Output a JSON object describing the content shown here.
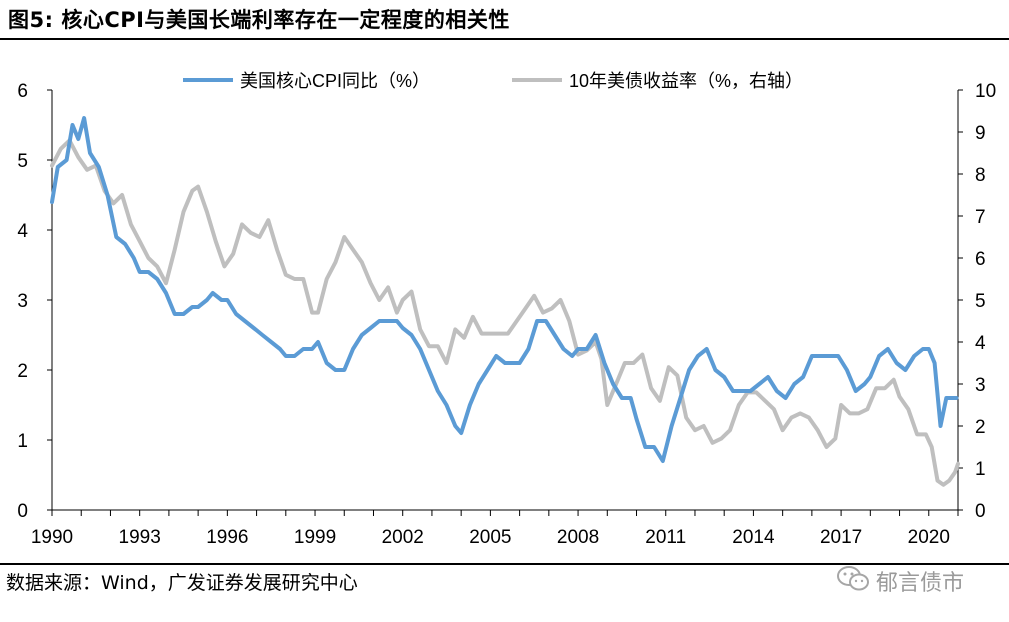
{
  "title": "图5:  核心CPI与美国长端利率存在一定程度的相关性",
  "source": "数据来源：Wind，广发证券发展研究中心",
  "watermark": "郁言债市",
  "chart_data": {
    "type": "line",
    "x_ticks": [
      "1990",
      "1993",
      "1996",
      "1999",
      "2002",
      "2005",
      "2008",
      "2011",
      "2014",
      "2017",
      "2020"
    ],
    "xlim": [
      1990,
      2021
    ],
    "y_left_ticks": [
      "0",
      "1",
      "2",
      "3",
      "4",
      "5",
      "6"
    ],
    "y_right_ticks": [
      "0",
      "1",
      "2",
      "3",
      "4",
      "5",
      "6",
      "7",
      "8",
      "9",
      "10"
    ],
    "ylim_left": [
      0,
      6
    ],
    "ylim_right": [
      0,
      10
    ],
    "legend_position": "top",
    "series": [
      {
        "name": "美国核心CPI同比（%）",
        "axis": "left",
        "color": "#5b9bd5",
        "points": [
          [
            1990.0,
            4.4
          ],
          [
            1990.2,
            4.9
          ],
          [
            1990.5,
            5.0
          ],
          [
            1990.7,
            5.5
          ],
          [
            1990.9,
            5.3
          ],
          [
            1991.1,
            5.6
          ],
          [
            1991.3,
            5.1
          ],
          [
            1991.6,
            4.9
          ],
          [
            1991.9,
            4.5
          ],
          [
            1992.2,
            3.9
          ],
          [
            1992.5,
            3.8
          ],
          [
            1992.8,
            3.6
          ],
          [
            1993.0,
            3.4
          ],
          [
            1993.3,
            3.4
          ],
          [
            1993.6,
            3.3
          ],
          [
            1993.9,
            3.1
          ],
          [
            1994.2,
            2.8
          ],
          [
            1994.5,
            2.8
          ],
          [
            1994.8,
            2.9
          ],
          [
            1995.0,
            2.9
          ],
          [
            1995.3,
            3.0
          ],
          [
            1995.5,
            3.1
          ],
          [
            1995.8,
            3.0
          ],
          [
            1996.0,
            3.0
          ],
          [
            1996.3,
            2.8
          ],
          [
            1996.6,
            2.7
          ],
          [
            1996.9,
            2.6
          ],
          [
            1997.2,
            2.5
          ],
          [
            1997.5,
            2.4
          ],
          [
            1997.8,
            2.3
          ],
          [
            1998.0,
            2.2
          ],
          [
            1998.3,
            2.2
          ],
          [
            1998.6,
            2.3
          ],
          [
            1998.9,
            2.3
          ],
          [
            1999.1,
            2.4
          ],
          [
            1999.4,
            2.1
          ],
          [
            1999.7,
            2.0
          ],
          [
            2000.0,
            2.0
          ],
          [
            2000.3,
            2.3
          ],
          [
            2000.6,
            2.5
          ],
          [
            2000.9,
            2.6
          ],
          [
            2001.2,
            2.7
          ],
          [
            2001.5,
            2.7
          ],
          [
            2001.8,
            2.7
          ],
          [
            2002.0,
            2.6
          ],
          [
            2002.3,
            2.5
          ],
          [
            2002.6,
            2.3
          ],
          [
            2002.9,
            2.0
          ],
          [
            2003.2,
            1.7
          ],
          [
            2003.5,
            1.5
          ],
          [
            2003.8,
            1.2
          ],
          [
            2004.0,
            1.1
          ],
          [
            2004.3,
            1.5
          ],
          [
            2004.6,
            1.8
          ],
          [
            2004.9,
            2.0
          ],
          [
            2005.2,
            2.2
          ],
          [
            2005.5,
            2.1
          ],
          [
            2005.8,
            2.1
          ],
          [
            2006.0,
            2.1
          ],
          [
            2006.3,
            2.3
          ],
          [
            2006.6,
            2.7
          ],
          [
            2006.9,
            2.7
          ],
          [
            2007.2,
            2.5
          ],
          [
            2007.5,
            2.3
          ],
          [
            2007.8,
            2.2
          ],
          [
            2008.0,
            2.3
          ],
          [
            2008.3,
            2.3
          ],
          [
            2008.6,
            2.5
          ],
          [
            2008.9,
            2.1
          ],
          [
            2009.2,
            1.8
          ],
          [
            2009.5,
            1.6
          ],
          [
            2009.8,
            1.6
          ],
          [
            2010.0,
            1.3
          ],
          [
            2010.3,
            0.9
          ],
          [
            2010.6,
            0.9
          ],
          [
            2010.9,
            0.7
          ],
          [
            2011.2,
            1.2
          ],
          [
            2011.5,
            1.6
          ],
          [
            2011.8,
            2.0
          ],
          [
            2012.1,
            2.2
          ],
          [
            2012.4,
            2.3
          ],
          [
            2012.7,
            2.0
          ],
          [
            2013.0,
            1.9
          ],
          [
            2013.3,
            1.7
          ],
          [
            2013.6,
            1.7
          ],
          [
            2013.9,
            1.7
          ],
          [
            2014.2,
            1.8
          ],
          [
            2014.5,
            1.9
          ],
          [
            2014.8,
            1.7
          ],
          [
            2015.1,
            1.6
          ],
          [
            2015.4,
            1.8
          ],
          [
            2015.7,
            1.9
          ],
          [
            2016.0,
            2.2
          ],
          [
            2016.3,
            2.2
          ],
          [
            2016.6,
            2.2
          ],
          [
            2016.9,
            2.2
          ],
          [
            2017.2,
            2.0
          ],
          [
            2017.5,
            1.7
          ],
          [
            2017.8,
            1.8
          ],
          [
            2018.0,
            1.9
          ],
          [
            2018.3,
            2.2
          ],
          [
            2018.6,
            2.3
          ],
          [
            2018.9,
            2.1
          ],
          [
            2019.2,
            2.0
          ],
          [
            2019.5,
            2.2
          ],
          [
            2019.8,
            2.3
          ],
          [
            2020.0,
            2.3
          ],
          [
            2020.2,
            2.1
          ],
          [
            2020.4,
            1.2
          ],
          [
            2020.6,
            1.6
          ],
          [
            2020.8,
            1.6
          ],
          [
            2020.95,
            1.6
          ]
        ]
      },
      {
        "name": "10年美债收益率（%，右轴）",
        "axis": "right",
        "color": "#bfbfbf",
        "points": [
          [
            1990.0,
            8.2
          ],
          [
            1990.3,
            8.6
          ],
          [
            1990.6,
            8.8
          ],
          [
            1990.9,
            8.4
          ],
          [
            1991.2,
            8.1
          ],
          [
            1991.5,
            8.2
          ],
          [
            1991.8,
            7.6
          ],
          [
            1992.1,
            7.3
          ],
          [
            1992.4,
            7.5
          ],
          [
            1992.7,
            6.8
          ],
          [
            1993.0,
            6.4
          ],
          [
            1993.3,
            6.0
          ],
          [
            1993.6,
            5.8
          ],
          [
            1993.9,
            5.4
          ],
          [
            1994.2,
            6.2
          ],
          [
            1994.5,
            7.1
          ],
          [
            1994.8,
            7.6
          ],
          [
            1995.0,
            7.7
          ],
          [
            1995.3,
            7.1
          ],
          [
            1995.6,
            6.4
          ],
          [
            1995.9,
            5.8
          ],
          [
            1996.2,
            6.1
          ],
          [
            1996.5,
            6.8
          ],
          [
            1996.8,
            6.6
          ],
          [
            1997.1,
            6.5
          ],
          [
            1997.4,
            6.9
          ],
          [
            1997.7,
            6.2
          ],
          [
            1998.0,
            5.6
          ],
          [
            1998.3,
            5.5
          ],
          [
            1998.6,
            5.5
          ],
          [
            1998.9,
            4.7
          ],
          [
            1999.1,
            4.7
          ],
          [
            1999.4,
            5.5
          ],
          [
            1999.7,
            5.9
          ],
          [
            2000.0,
            6.5
          ],
          [
            2000.3,
            6.2
          ],
          [
            2000.6,
            5.9
          ],
          [
            2000.9,
            5.4
          ],
          [
            2001.2,
            5.0
          ],
          [
            2001.5,
            5.3
          ],
          [
            2001.8,
            4.7
          ],
          [
            2002.0,
            5.0
          ],
          [
            2002.3,
            5.2
          ],
          [
            2002.6,
            4.3
          ],
          [
            2002.9,
            3.9
          ],
          [
            2003.2,
            3.9
          ],
          [
            2003.5,
            3.5
          ],
          [
            2003.8,
            4.3
          ],
          [
            2004.1,
            4.1
          ],
          [
            2004.4,
            4.6
          ],
          [
            2004.7,
            4.2
          ],
          [
            2005.0,
            4.2
          ],
          [
            2005.3,
            4.2
          ],
          [
            2005.6,
            4.2
          ],
          [
            2005.9,
            4.5
          ],
          [
            2006.2,
            4.8
          ],
          [
            2006.5,
            5.1
          ],
          [
            2006.8,
            4.7
          ],
          [
            2007.1,
            4.8
          ],
          [
            2007.4,
            5.0
          ],
          [
            2007.7,
            4.5
          ],
          [
            2008.0,
            3.7
          ],
          [
            2008.3,
            3.8
          ],
          [
            2008.6,
            4.0
          ],
          [
            2008.8,
            3.6
          ],
          [
            2009.0,
            2.5
          ],
          [
            2009.3,
            3.0
          ],
          [
            2009.6,
            3.5
          ],
          [
            2009.9,
            3.5
          ],
          [
            2010.2,
            3.7
          ],
          [
            2010.5,
            2.9
          ],
          [
            2010.8,
            2.6
          ],
          [
            2011.1,
            3.4
          ],
          [
            2011.4,
            3.2
          ],
          [
            2011.7,
            2.2
          ],
          [
            2012.0,
            1.9
          ],
          [
            2012.3,
            2.0
          ],
          [
            2012.6,
            1.6
          ],
          [
            2012.9,
            1.7
          ],
          [
            2013.2,
            1.9
          ],
          [
            2013.5,
            2.5
          ],
          [
            2013.8,
            2.8
          ],
          [
            2014.1,
            2.8
          ],
          [
            2014.4,
            2.6
          ],
          [
            2014.7,
            2.4
          ],
          [
            2015.0,
            1.9
          ],
          [
            2015.3,
            2.2
          ],
          [
            2015.6,
            2.3
          ],
          [
            2015.9,
            2.2
          ],
          [
            2016.2,
            1.9
          ],
          [
            2016.5,
            1.5
          ],
          [
            2016.8,
            1.7
          ],
          [
            2017.0,
            2.5
          ],
          [
            2017.3,
            2.3
          ],
          [
            2017.6,
            2.3
          ],
          [
            2017.9,
            2.4
          ],
          [
            2018.2,
            2.9
          ],
          [
            2018.5,
            2.9
          ],
          [
            2018.8,
            3.1
          ],
          [
            2019.0,
            2.7
          ],
          [
            2019.3,
            2.4
          ],
          [
            2019.6,
            1.8
          ],
          [
            2019.9,
            1.8
          ],
          [
            2020.1,
            1.5
          ],
          [
            2020.3,
            0.7
          ],
          [
            2020.5,
            0.6
          ],
          [
            2020.7,
            0.7
          ],
          [
            2020.9,
            0.9
          ],
          [
            2021.0,
            1.1
          ]
        ]
      }
    ]
  }
}
